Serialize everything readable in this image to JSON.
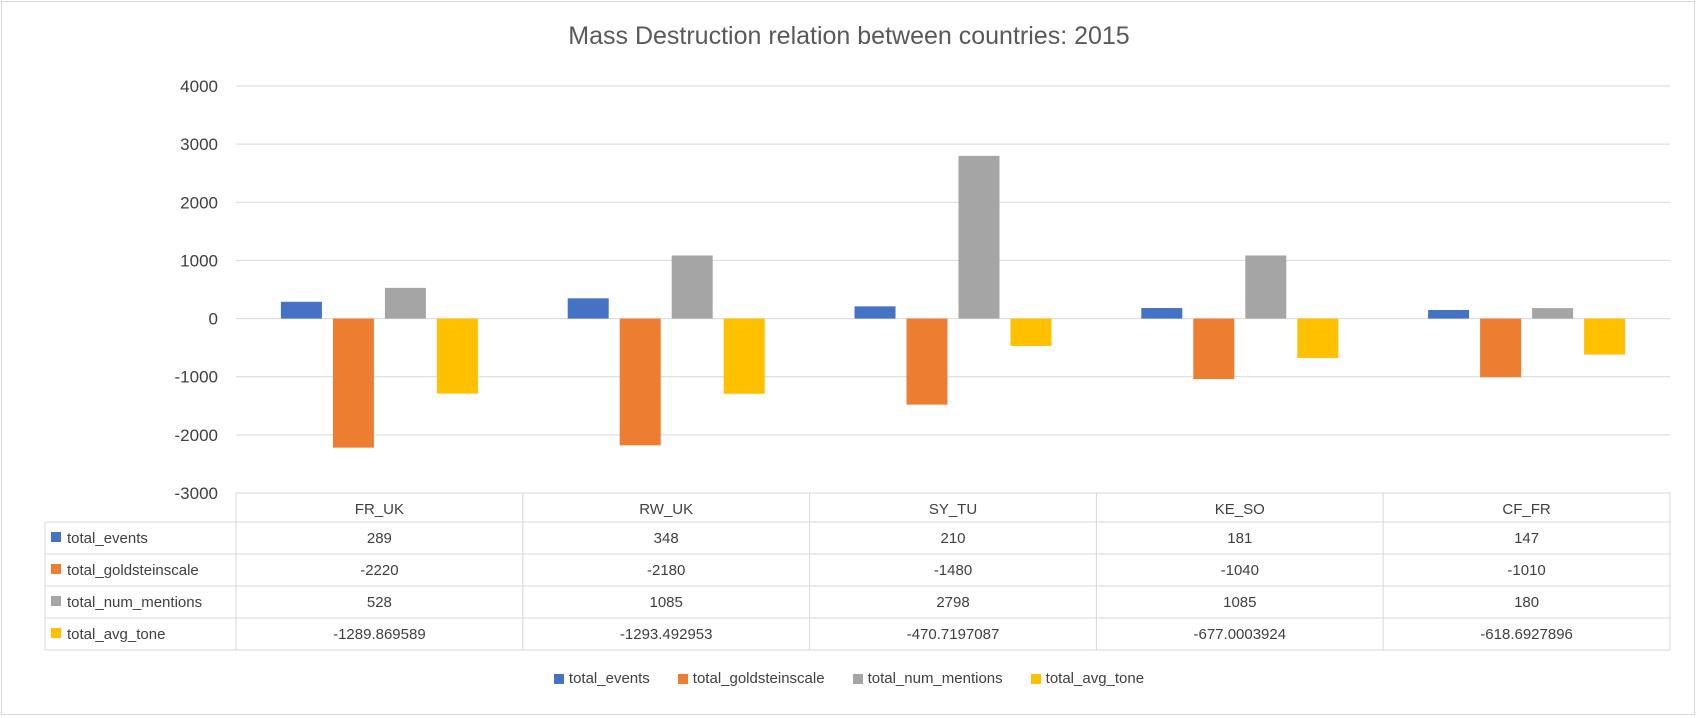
{
  "chart_data": {
    "type": "bar",
    "title": "Mass Destruction relation between countries: 2015",
    "categories": [
      "FR_UK",
      "RW_UK",
      "SY_TU",
      "KE_SO",
      "CF_FR"
    ],
    "ylim": [
      -3000,
      4000
    ],
    "yticks": [
      4000,
      3000,
      2000,
      1000,
      0,
      -1000,
      -2000,
      -3000
    ],
    "grid": true,
    "legend_position": "bottom",
    "data_table": true,
    "series": [
      {
        "name": "total_events",
        "color": "#4472C4",
        "values": [
          289,
          348,
          210,
          181,
          147
        ],
        "labels": [
          "289",
          "348",
          "210",
          "181",
          "147"
        ]
      },
      {
        "name": "total_goldsteinscale",
        "color": "#ED7D31",
        "values": [
          -2220,
          -2180,
          -1480,
          -1040,
          -1010
        ],
        "labels": [
          "-2220",
          "-2180",
          "-1480",
          "-1040",
          "-1010"
        ]
      },
      {
        "name": "total_num_mentions",
        "color": "#A5A5A5",
        "values": [
          528,
          1085,
          2798,
          1085,
          180
        ],
        "labels": [
          "528",
          "1085",
          "2798",
          "1085",
          "180"
        ]
      },
      {
        "name": "total_avg_tone",
        "color": "#FFC000",
        "values": [
          -1289.869589,
          -1293.492953,
          -470.7197087,
          -677.0003924,
          -618.6927896
        ],
        "labels": [
          "-1289.869589",
          "-1293.492953",
          "-470.7197087",
          "-677.0003924",
          "-618.6927896"
        ]
      }
    ]
  }
}
